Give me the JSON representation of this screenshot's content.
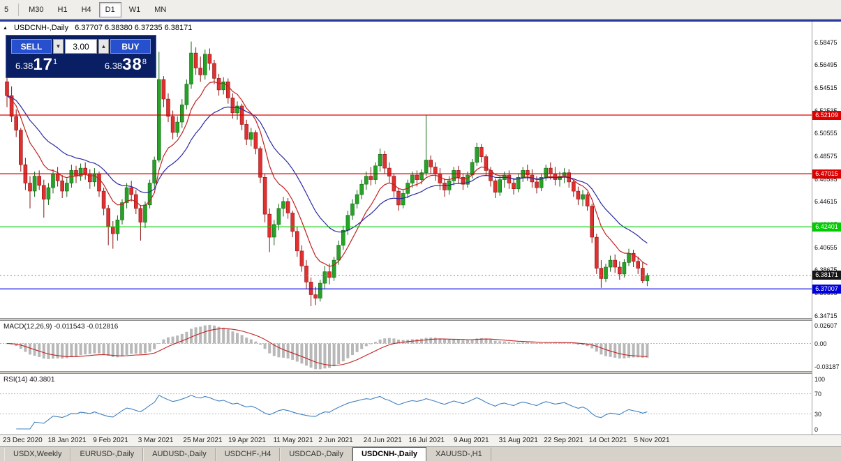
{
  "toolbar": {
    "timeframes": [
      {
        "label": "5",
        "active": false
      },
      {
        "label": "M30",
        "active": false
      },
      {
        "label": "H1",
        "active": false
      },
      {
        "label": "H4",
        "active": false
      },
      {
        "label": "D1",
        "active": true
      },
      {
        "label": "W1",
        "active": false
      },
      {
        "label": "MN",
        "active": false
      }
    ]
  },
  "chart": {
    "marker": "▲",
    "symbol_label": "USDCNH-,Daily",
    "ohlc_label": "6.37707 6.38380 6.37235 6.38171",
    "price_axis_labels": [
      "6.58475",
      "6.56495",
      "6.54515",
      "6.52535",
      "6.50555",
      "6.48575",
      "6.46595",
      "6.44615",
      "6.42635",
      "6.40655",
      "6.38675",
      "6.36695",
      "6.34715"
    ],
    "hlines": [
      {
        "price": 6.52109,
        "label": "6.52109",
        "color": "#dd0000"
      },
      {
        "price": 6.47015,
        "label": "6.47015",
        "color": "#dd0000"
      },
      {
        "price": 6.42401,
        "label": "6.42401",
        "color": "#00cc00"
      },
      {
        "price": 6.37007,
        "label": "6.37007",
        "color": "#0000dd"
      }
    ],
    "current_price": {
      "value": 6.38171,
      "label": "6.38171",
      "badge": "#161616"
    }
  },
  "trade_panel": {
    "sell_label": "SELL",
    "buy_label": "BUY",
    "volume": "3.00",
    "sell_price_prefix": "6.38",
    "sell_price_main": "17",
    "sell_price_sup": "1",
    "buy_price_prefix": "6.38",
    "buy_price_main": "38",
    "buy_price_sup": "8"
  },
  "macd": {
    "title": "MACD(12,26,9) -0.011543 -0.012816",
    "axis_labels": [
      {
        "value": 0.02607,
        "label": "0.02607"
      },
      {
        "value": 0,
        "label": "0.00"
      },
      {
        "value": -0.03187,
        "label": "-0.03187"
      }
    ]
  },
  "rsi": {
    "title": "RSI(14) 40.3801",
    "levels": [
      70,
      30
    ],
    "axis_labels": [
      {
        "value": 100,
        "label": "100"
      },
      {
        "value": 70,
        "label": "70"
      },
      {
        "value": 30,
        "label": "30"
      },
      {
        "value": 0,
        "label": "0"
      }
    ]
  },
  "date_axis": [
    "23 Dec 2020",
    "18 Jan 2021",
    "9 Feb 2021",
    "3 Mar 2021",
    "25 Mar 2021",
    "19 Apr 2021",
    "11 May 2021",
    "2 Jun 2021",
    "24 Jun 2021",
    "16 Jul 2021",
    "9 Aug 2021",
    "31 Aug 2021",
    "22 Sep 2021",
    "14 Oct 2021",
    "5 Nov 2021"
  ],
  "tabs": [
    {
      "label": "USDX,Weekly",
      "active": false
    },
    {
      "label": "EURUSD-,Daily",
      "active": false
    },
    {
      "label": "AUDUSD-,Daily",
      "active": false
    },
    {
      "label": "USDCHF-,H4",
      "active": false
    },
    {
      "label": "USDCAD-,Daily",
      "active": false
    },
    {
      "label": "USDCNH-,Daily",
      "active": true
    },
    {
      "label": "XAUUSD-,H1",
      "active": false
    }
  ],
  "colors": {
    "bull": "#26a326",
    "bull_border": "#156615",
    "bear": "#e03030",
    "bear_border": "#8e1414",
    "ma_fast": "#c22020",
    "ma_slow": "#2929a3",
    "macd_hist": "#b8b8b8",
    "macd_signal": "#c22020",
    "rsi_line": "#4080c0",
    "accent_top": "#2b3a9e",
    "panel_bg": "#0a1e63",
    "button_blue": "#2750cf"
  },
  "chart_data": {
    "type": "candlestick",
    "symbol": "USDCNH-",
    "timeframe": "Daily",
    "last_bar": {
      "open": "6.37707",
      "high": "6.38380",
      "low": "6.37235",
      "close": "6.38171"
    },
    "hline_levels": [
      6.52109,
      6.47015,
      6.42401,
      6.37007
    ],
    "moving_averages": [
      {
        "period": 9,
        "color_key": "ma_fast"
      },
      {
        "period": 21,
        "color_key": "ma_slow"
      }
    ],
    "macd": {
      "params": [
        12,
        26,
        9
      ],
      "current": [
        -0.011543,
        -0.012816
      ],
      "axis_range": [
        0.02607,
        -0.03187
      ]
    },
    "rsi": {
      "params": [
        14
      ],
      "current": 40.3801,
      "levels": [
        70,
        30
      ],
      "axis_range": [
        100,
        0
      ]
    },
    "ohlc": [
      [
        6.55,
        6.556,
        6.528,
        6.538
      ],
      [
        6.538,
        6.546,
        6.515,
        6.52
      ],
      [
        6.52,
        6.526,
        6.502,
        6.508
      ],
      [
        6.508,
        6.51,
        6.472,
        6.478
      ],
      [
        6.478,
        6.484,
        6.456,
        6.462
      ],
      [
        6.462,
        6.468,
        6.44,
        6.455
      ],
      [
        6.455,
        6.472,
        6.45,
        6.468
      ],
      [
        6.468,
        6.473,
        6.456,
        6.46
      ],
      [
        6.46,
        6.465,
        6.432,
        6.448
      ],
      [
        6.448,
        6.462,
        6.443,
        6.458
      ],
      [
        6.458,
        6.474,
        6.453,
        6.47
      ],
      [
        6.47,
        6.476,
        6.459,
        6.464
      ],
      [
        6.464,
        6.469,
        6.449,
        6.455
      ],
      [
        6.455,
        6.466,
        6.45,
        6.462
      ],
      [
        6.462,
        6.478,
        6.458,
        6.473
      ],
      [
        6.473,
        6.477,
        6.462,
        6.468
      ],
      [
        6.468,
        6.479,
        6.464,
        6.475
      ],
      [
        6.475,
        6.48,
        6.465,
        6.47
      ],
      [
        6.47,
        6.474,
        6.457,
        6.463
      ],
      [
        6.463,
        6.475,
        6.459,
        6.47
      ],
      [
        6.47,
        6.472,
        6.45,
        6.455
      ],
      [
        6.455,
        6.458,
        6.434,
        6.44
      ],
      [
        6.44,
        6.443,
        6.408,
        6.424
      ],
      [
        6.424,
        6.429,
        6.405,
        6.418
      ],
      [
        6.418,
        6.434,
        6.412,
        6.43
      ],
      [
        6.43,
        6.448,
        6.426,
        6.445
      ],
      [
        6.445,
        6.462,
        6.44,
        6.458
      ],
      [
        6.458,
        6.464,
        6.446,
        6.452
      ],
      [
        6.452,
        6.456,
        6.435,
        6.44
      ],
      [
        6.44,
        6.443,
        6.412,
        6.428
      ],
      [
        6.428,
        6.446,
        6.423,
        6.443
      ],
      [
        6.443,
        6.465,
        6.44,
        6.462
      ],
      [
        6.462,
        6.485,
        6.458,
        6.482
      ],
      [
        6.482,
        6.576,
        6.48,
        6.552
      ],
      [
        6.552,
        6.555,
        6.528,
        6.535
      ],
      [
        6.535,
        6.54,
        6.515,
        6.52
      ],
      [
        6.52,
        6.525,
        6.5,
        6.506
      ],
      [
        6.506,
        6.52,
        6.502,
        6.515
      ],
      [
        6.515,
        6.535,
        6.51,
        6.53
      ],
      [
        6.53,
        6.552,
        6.526,
        6.548
      ],
      [
        6.548,
        6.585,
        6.544,
        6.575
      ],
      [
        6.575,
        6.58,
        6.556,
        6.562
      ],
      [
        6.562,
        6.572,
        6.55,
        6.556
      ],
      [
        6.556,
        6.578,
        6.552,
        6.574
      ],
      [
        6.574,
        6.579,
        6.56,
        6.566
      ],
      [
        6.566,
        6.569,
        6.548,
        6.553
      ],
      [
        6.553,
        6.557,
        6.538,
        6.543
      ],
      [
        6.543,
        6.554,
        6.539,
        6.55
      ],
      [
        6.55,
        6.553,
        6.531,
        6.536
      ],
      [
        6.536,
        6.54,
        6.518,
        6.523
      ],
      [
        6.523,
        6.533,
        6.517,
        6.529
      ],
      [
        6.529,
        6.531,
        6.508,
        6.513
      ],
      [
        6.513,
        6.517,
        6.495,
        6.5
      ],
      [
        6.5,
        6.51,
        6.494,
        6.506
      ],
      [
        6.506,
        6.508,
        6.487,
        6.492
      ],
      [
        6.492,
        6.494,
        6.462,
        6.467
      ],
      [
        6.467,
        6.47,
        6.428,
        6.435
      ],
      [
        6.435,
        6.44,
        6.402,
        6.415
      ],
      [
        6.415,
        6.43,
        6.408,
        6.426
      ],
      [
        6.426,
        6.444,
        6.421,
        6.44
      ],
      [
        6.44,
        6.45,
        6.433,
        6.446
      ],
      [
        6.446,
        6.449,
        6.431,
        6.436
      ],
      [
        6.436,
        6.438,
        6.415,
        6.42
      ],
      [
        6.42,
        6.424,
        6.398,
        6.403
      ],
      [
        6.403,
        6.408,
        6.385,
        6.39
      ],
      [
        6.39,
        6.395,
        6.37,
        6.376
      ],
      [
        6.376,
        6.38,
        6.355,
        6.365
      ],
      [
        6.365,
        6.372,
        6.356,
        6.362
      ],
      [
        6.362,
        6.378,
        6.359,
        6.375
      ],
      [
        6.375,
        6.39,
        6.37,
        6.385
      ],
      [
        6.385,
        6.392,
        6.374,
        6.38
      ],
      [
        6.38,
        6.398,
        6.377,
        6.395
      ],
      [
        6.395,
        6.412,
        6.391,
        6.408
      ],
      [
        6.408,
        6.425,
        6.404,
        6.421
      ],
      [
        6.421,
        6.438,
        6.417,
        6.434
      ],
      [
        6.434,
        6.448,
        6.43,
        6.444
      ],
      [
        6.444,
        6.456,
        6.44,
        6.452
      ],
      [
        6.452,
        6.465,
        6.448,
        6.461
      ],
      [
        6.461,
        6.472,
        6.456,
        6.468
      ],
      [
        6.468,
        6.476,
        6.46,
        6.465
      ],
      [
        6.465,
        6.48,
        6.461,
        6.477
      ],
      [
        6.477,
        6.492,
        6.472,
        6.487
      ],
      [
        6.487,
        6.49,
        6.47,
        6.475
      ],
      [
        6.475,
        6.48,
        6.462,
        6.468
      ],
      [
        6.468,
        6.47,
        6.45,
        6.455
      ],
      [
        6.455,
        6.458,
        6.438,
        6.443
      ],
      [
        6.443,
        6.456,
        6.44,
        6.453
      ],
      [
        6.453,
        6.465,
        6.449,
        6.462
      ],
      [
        6.462,
        6.472,
        6.458,
        6.469
      ],
      [
        6.469,
        6.473,
        6.459,
        6.465
      ],
      [
        6.465,
        6.474,
        6.461,
        6.471
      ],
      [
        6.471,
        6.521,
        6.468,
        6.482
      ],
      [
        6.482,
        6.486,
        6.47,
        6.476
      ],
      [
        6.476,
        6.48,
        6.464,
        6.47
      ],
      [
        6.47,
        6.475,
        6.456,
        6.462
      ],
      [
        6.462,
        6.466,
        6.45,
        6.456
      ],
      [
        6.456,
        6.468,
        6.452,
        6.464
      ],
      [
        6.464,
        6.476,
        6.46,
        6.473
      ],
      [
        6.473,
        6.477,
        6.462,
        6.467
      ],
      [
        6.467,
        6.47,
        6.456,
        6.461
      ],
      [
        6.461,
        6.472,
        6.458,
        6.469
      ],
      [
        6.469,
        6.483,
        6.466,
        6.48
      ],
      [
        6.48,
        6.497,
        6.477,
        6.493
      ],
      [
        6.493,
        6.496,
        6.48,
        6.485
      ],
      [
        6.485,
        6.487,
        6.468,
        6.473
      ],
      [
        6.473,
        6.476,
        6.459,
        6.464
      ],
      [
        6.464,
        6.466,
        6.449,
        6.454
      ],
      [
        6.454,
        6.468,
        6.451,
        6.465
      ],
      [
        6.465,
        6.472,
        6.458,
        6.469
      ],
      [
        6.469,
        6.473,
        6.457,
        6.462
      ],
      [
        6.462,
        6.466,
        6.452,
        6.457
      ],
      [
        6.457,
        6.47,
        6.454,
        6.467
      ],
      [
        6.467,
        6.476,
        6.463,
        6.473
      ],
      [
        6.473,
        6.478,
        6.464,
        6.469
      ],
      [
        6.469,
        6.474,
        6.458,
        6.463
      ],
      [
        6.463,
        6.468,
        6.453,
        6.458
      ],
      [
        6.458,
        6.47,
        6.455,
        6.467
      ],
      [
        6.467,
        6.478,
        6.464,
        6.475
      ],
      [
        6.475,
        6.48,
        6.465,
        6.47
      ],
      [
        6.47,
        6.476,
        6.46,
        6.465
      ],
      [
        6.465,
        6.472,
        6.459,
        6.468
      ],
      [
        6.468,
        6.475,
        6.462,
        6.471
      ],
      [
        6.471,
        6.474,
        6.458,
        6.463
      ],
      [
        6.463,
        6.465,
        6.45,
        6.455
      ],
      [
        6.455,
        6.459,
        6.443,
        6.448
      ],
      [
        6.448,
        6.456,
        6.442,
        6.452
      ],
      [
        6.452,
        6.454,
        6.438,
        6.442
      ],
      [
        6.442,
        6.444,
        6.41,
        6.415
      ],
      [
        6.415,
        6.418,
        6.383,
        6.388
      ],
      [
        6.388,
        6.395,
        6.371,
        6.379
      ],
      [
        6.379,
        6.392,
        6.376,
        6.389
      ],
      [
        6.389,
        6.399,
        6.385,
        6.395
      ],
      [
        6.395,
        6.4,
        6.384,
        6.389
      ],
      [
        6.389,
        6.394,
        6.378,
        6.383
      ],
      [
        6.383,
        6.396,
        6.38,
        6.393
      ],
      [
        6.393,
        6.405,
        6.39,
        6.401
      ],
      [
        6.401,
        6.404,
        6.389,
        6.394
      ],
      [
        6.394,
        6.398,
        6.383,
        6.388
      ],
      [
        6.388,
        6.393,
        6.375,
        6.3771
      ],
      [
        6.3771,
        6.3838,
        6.3724,
        6.3817
      ]
    ]
  }
}
